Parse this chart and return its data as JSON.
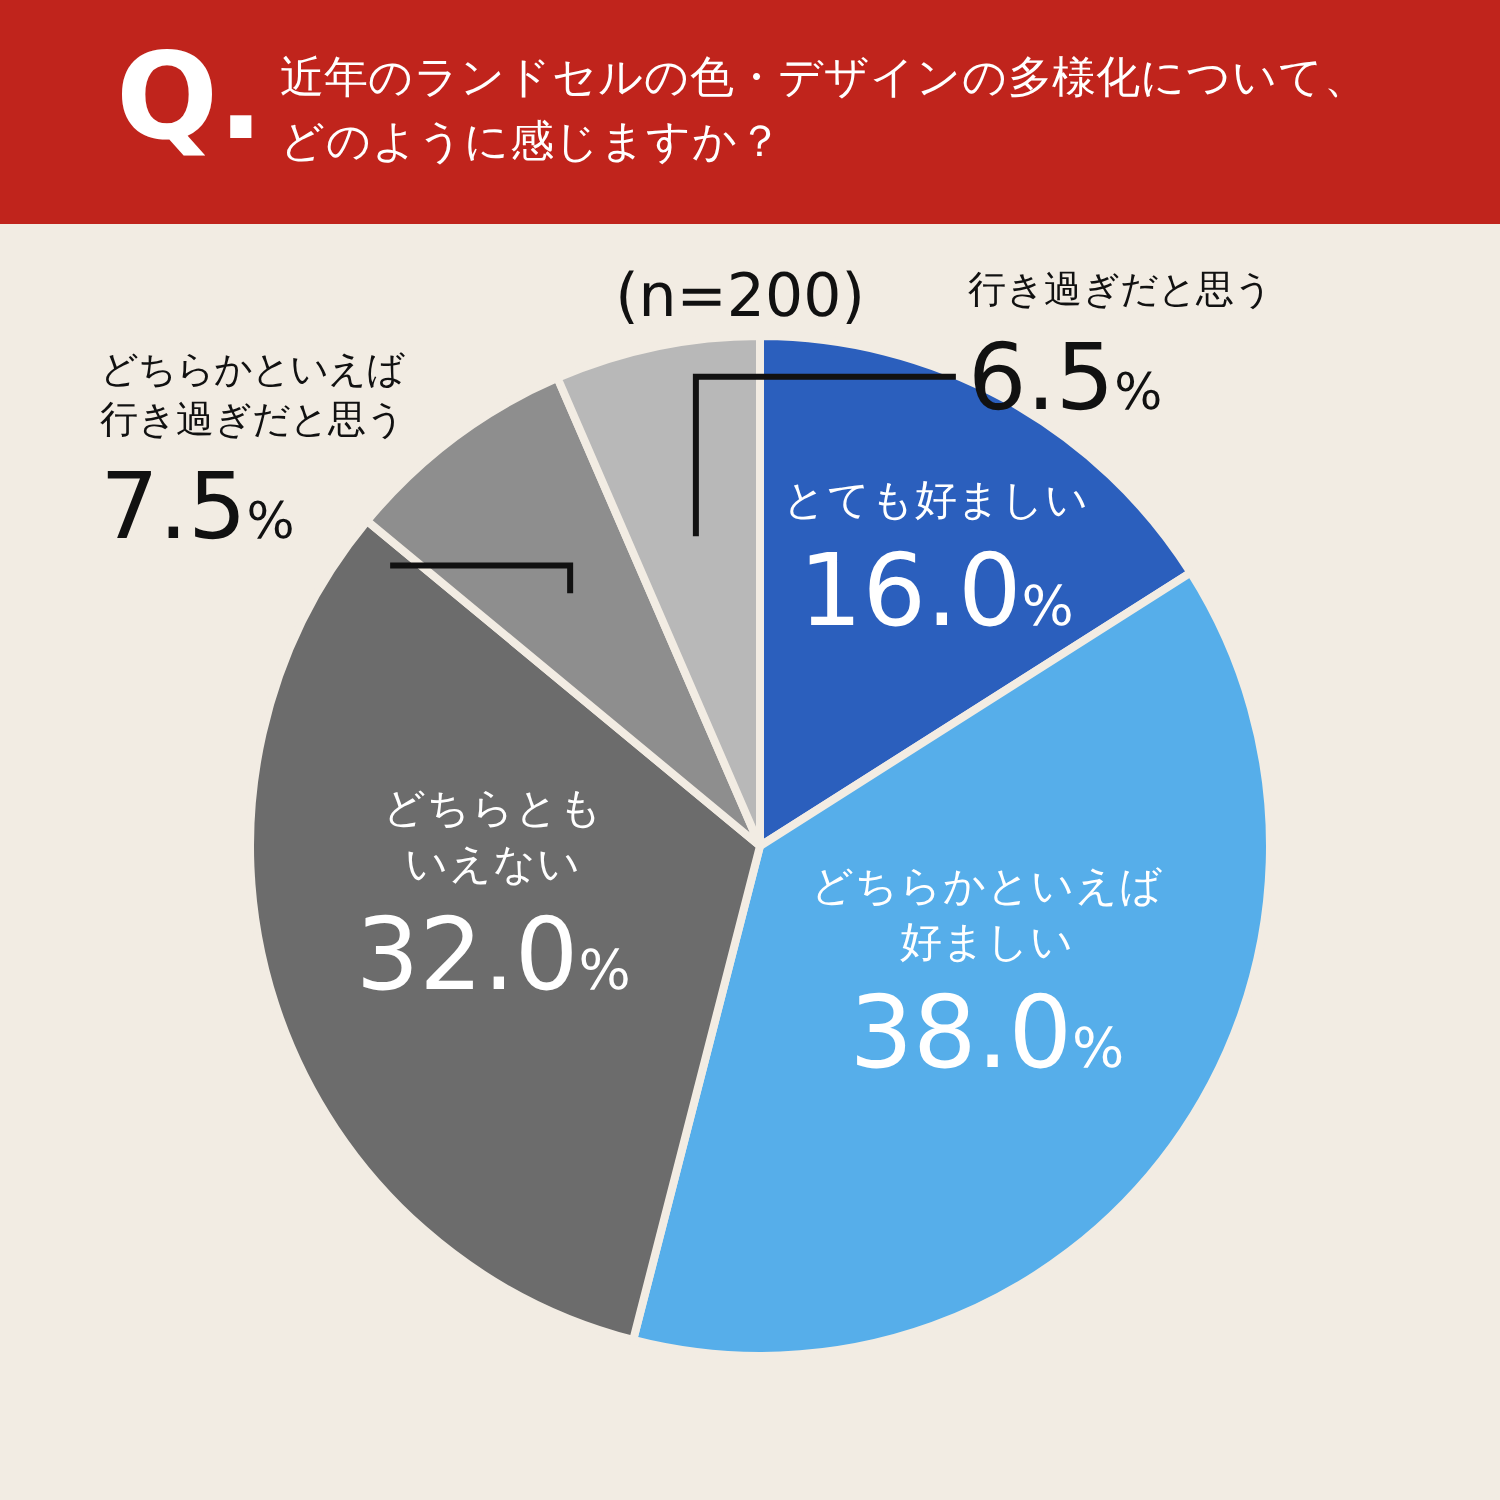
{
  "chart_data": {
    "type": "pie",
    "title": "近年のランドセルの色・デザインの多様化について、どのように感じますか？",
    "subtitle": "(n=200)",
    "annotations": [
      "Q."
    ],
    "categories": [
      "とても好ましい",
      "どちらかといえば好ましい",
      "どちらともいえない",
      "どちらかといえば行き過ぎだと思う",
      "行き過ぎだと思う"
    ],
    "values": [
      16.0,
      38.0,
      32.0,
      7.5,
      6.5
    ],
    "value_labels": [
      "16.0%",
      "38.0%",
      "32.0%",
      "7.5%",
      "6.5%"
    ],
    "colors": [
      "#2b5fbd",
      "#56aeea",
      "#6c6c6c",
      "#8e8e8e",
      "#b8b8b8"
    ]
  }
}
